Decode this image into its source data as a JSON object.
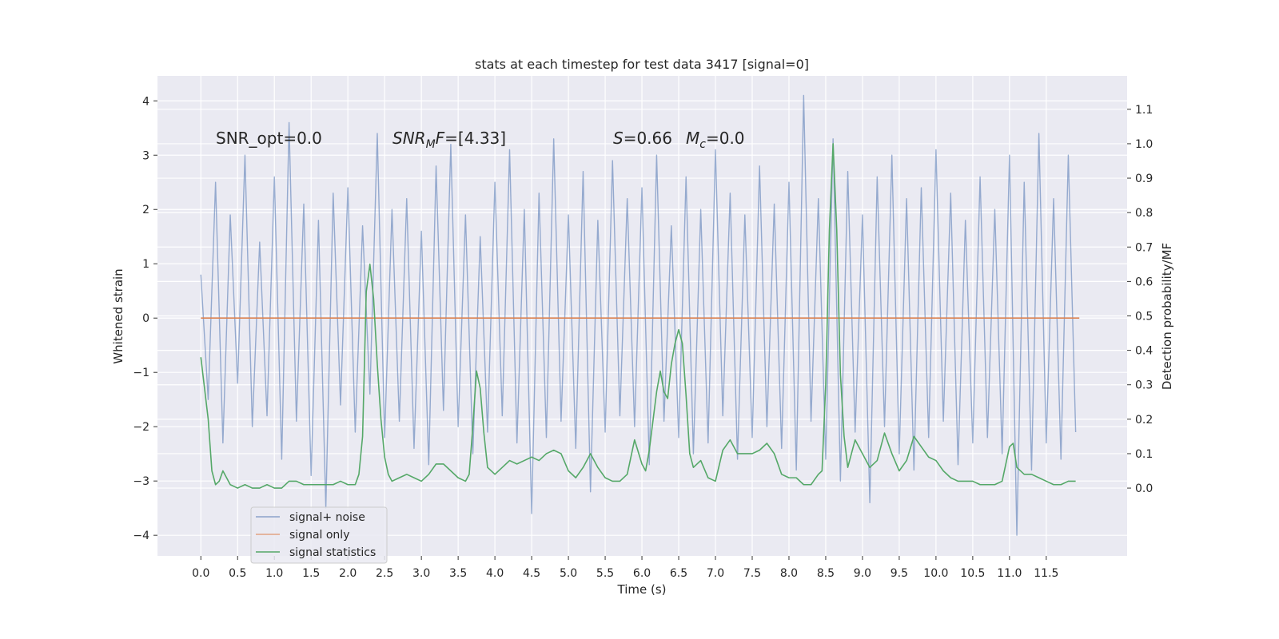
{
  "chart_data": {
    "type": "line",
    "title": "stats at each timestep for test data 3417 [signal=0]",
    "xlabel": "Time (s)",
    "ylabel": "Whitened strain",
    "y2label": "Detection probability/MF",
    "annotations": [
      [
        "SNR_opt=0.0"
      ],
      [
        "SNR",
        "M",
        "F",
        "=[4.33]"
      ],
      [
        "S",
        "=0.66"
      ],
      [
        "M",
        "c",
        "=0.0"
      ]
    ],
    "xlim": [
      -0.59,
      12.6
    ],
    "ylim": [
      -4.38,
      4.46
    ],
    "y2lim": [
      -0.197,
      1.197
    ],
    "xticks": [
      {
        "value": 0,
        "label": "0.0"
      },
      0.5,
      {
        "value": 1,
        "label": "1.0"
      },
      1.5,
      {
        "value": 2,
        "label": "2.0"
      },
      2.5,
      {
        "value": 3,
        "label": "3.0"
      },
      3.5,
      {
        "value": 4,
        "label": "4.0"
      },
      4.5,
      {
        "value": 5,
        "label": "5.0"
      },
      5.5,
      {
        "value": 6,
        "label": "6.0"
      },
      6.5,
      {
        "value": 7,
        "label": "7.0"
      },
      7.5,
      {
        "value": 8,
        "label": "8.0"
      },
      8.5,
      {
        "value": 9,
        "label": "9.0"
      },
      9.5,
      {
        "value": 10,
        "label": "10.0"
      },
      10.5,
      {
        "value": 11,
        "label": "11.0"
      },
      11.5
    ],
    "yticks": [
      {
        "value": -4,
        "label": "−4"
      },
      {
        "value": -3,
        "label": "−3"
      },
      {
        "value": -2,
        "label": "−2"
      },
      {
        "value": -1,
        "label": "−1"
      },
      0,
      1,
      2,
      3,
      4
    ],
    "y2ticks": [
      {
        "value": 0,
        "label": "0.0"
      },
      0.1,
      0.2,
      0.3,
      0.4,
      0.5,
      0.6,
      0.7,
      0.8,
      0.9,
      {
        "value": 1,
        "label": "1.0"
      },
      1.1
    ],
    "grid": true,
    "legend": "lower left",
    "series": [
      {
        "name": "signal+ noise",
        "color": "#4c72b0",
        "x": [
          0,
          0.1,
          0.2,
          0.3,
          0.4,
          0.5,
          0.6,
          0.7,
          0.8,
          0.9,
          1,
          1.1,
          1.2,
          1.3,
          1.4,
          1.5,
          1.6,
          1.7,
          1.8,
          1.9,
          2,
          2.1,
          2.2,
          2.3,
          2.4,
          2.5,
          2.6,
          2.7,
          2.8,
          2.9,
          3,
          3.1,
          3.2,
          3.3,
          3.4,
          3.5,
          3.6,
          3.7,
          3.8,
          3.9,
          4,
          4.1,
          4.2,
          4.3,
          4.4,
          4.5,
          4.6,
          4.7,
          4.8,
          4.9,
          5,
          5.1,
          5.2,
          5.3,
          5.4,
          5.5,
          5.6,
          5.7,
          5.8,
          5.9,
          6,
          6.1,
          6.2,
          6.3,
          6.4,
          6.5,
          6.6,
          6.7,
          6.8,
          6.9,
          7,
          7.1,
          7.2,
          7.3,
          7.4,
          7.5,
          7.6,
          7.7,
          7.8,
          7.9,
          8,
          8.1,
          8.2,
          8.3,
          8.4,
          8.5,
          8.6,
          8.7,
          8.8,
          8.9,
          9,
          9.1,
          9.2,
          9.3,
          9.4,
          9.5,
          9.6,
          9.7,
          9.8,
          9.9,
          10,
          10.1,
          10.2,
          10.3,
          10.4,
          10.5,
          10.6,
          10.7,
          10.8,
          10.9,
          11,
          11.1,
          11.2,
          11.3,
          11.4,
          11.5,
          11.6,
          11.7,
          11.8,
          11.9
        ],
        "values": [
          0.8,
          -1.5,
          2.5,
          -2.3,
          1.9,
          -1.2,
          3.0,
          -2.0,
          1.4,
          -1.8,
          2.6,
          -2.6,
          3.6,
          -1.9,
          2.1,
          -2.9,
          1.8,
          -3.5,
          2.3,
          -1.6,
          2.4,
          -2.1,
          1.7,
          -1.4,
          3.4,
          -2.2,
          2.0,
          -1.9,
          2.2,
          -2.4,
          1.6,
          -2.7,
          2.8,
          -1.7,
          3.2,
          -2.0,
          1.9,
          -2.5,
          1.5,
          -2.1,
          2.5,
          -1.8,
          3.1,
          -2.3,
          2.0,
          -3.6,
          2.3,
          -2.2,
          3.3,
          -1.9,
          1.9,
          -2.4,
          2.7,
          -3.2,
          1.8,
          -2.1,
          2.9,
          -1.8,
          2.2,
          -2.0,
          2.4,
          -2.7,
          3.0,
          -1.9,
          1.7,
          -2.2,
          2.6,
          -2.5,
          2.0,
          -2.3,
          3.1,
          -1.8,
          2.3,
          -2.6,
          1.9,
          -2.2,
          2.8,
          -2.0,
          2.1,
          -2.4,
          2.5,
          -2.8,
          4.1,
          -1.9,
          2.2,
          -2.6,
          3.3,
          -3.0,
          2.7,
          -2.1,
          1.9,
          -3.4,
          2.6,
          -2.0,
          3.0,
          -2.5,
          2.2,
          -2.8,
          2.4,
          -2.2,
          3.1,
          -1.9,
          2.3,
          -2.7,
          1.8,
          -2.3,
          2.6,
          -2.2,
          2.0,
          -2.5,
          3.0,
          -4.0,
          2.5,
          -2.8,
          3.4,
          -2.3,
          2.2,
          -2.6,
          3.0,
          -2.1
        ]
      },
      {
        "name": "signal only",
        "color": "#dd8452",
        "x": [
          0,
          11.95
        ],
        "values": [
          0,
          0
        ]
      },
      {
        "name": "signal statistics",
        "color": "#55a868",
        "axis": "y2",
        "x": [
          0,
          0.1,
          0.15,
          0.2,
          0.25,
          0.3,
          0.4,
          0.5,
          0.6,
          0.7,
          0.8,
          0.9,
          1,
          1.1,
          1.2,
          1.3,
          1.4,
          1.5,
          1.7,
          1.8,
          1.9,
          2,
          2.1,
          2.15,
          2.2,
          2.25,
          2.3,
          2.35,
          2.4,
          2.45,
          2.5,
          2.55,
          2.6,
          2.7,
          2.8,
          2.9,
          3,
          3.1,
          3.2,
          3.3,
          3.4,
          3.5,
          3.6,
          3.65,
          3.7,
          3.75,
          3.8,
          3.85,
          3.9,
          4,
          4.1,
          4.2,
          4.3,
          4.4,
          4.5,
          4.6,
          4.7,
          4.8,
          4.9,
          5,
          5.1,
          5.2,
          5.3,
          5.4,
          5.5,
          5.6,
          5.7,
          5.8,
          5.9,
          6,
          6.05,
          6.1,
          6.2,
          6.25,
          6.3,
          6.35,
          6.4,
          6.45,
          6.5,
          6.55,
          6.6,
          6.65,
          6.7,
          6.8,
          6.9,
          7,
          7.1,
          7.2,
          7.3,
          7.4,
          7.5,
          7.6,
          7.7,
          7.8,
          7.9,
          8,
          8.1,
          8.2,
          8.3,
          8.4,
          8.45,
          8.5,
          8.55,
          8.6,
          8.65,
          8.7,
          8.75,
          8.8,
          8.9,
          9,
          9.1,
          9.2,
          9.3,
          9.4,
          9.5,
          9.6,
          9.7,
          9.8,
          9.9,
          10,
          10.1,
          10.2,
          10.3,
          10.4,
          10.5,
          10.6,
          10.7,
          10.8,
          10.9,
          11,
          11.05,
          11.1,
          11.2,
          11.3,
          11.4,
          11.5,
          11.6,
          11.7,
          11.8,
          11.9
        ],
        "values": [
          0.38,
          0.2,
          0.05,
          0.01,
          0.02,
          0.05,
          0.01,
          0,
          0.01,
          0,
          0,
          0.01,
          0,
          0,
          0.02,
          0.02,
          0.01,
          0.01,
          0.01,
          0.01,
          0.02,
          0.01,
          0.01,
          0.04,
          0.15,
          0.57,
          0.65,
          0.55,
          0.36,
          0.2,
          0.09,
          0.04,
          0.02,
          0.03,
          0.04,
          0.03,
          0.02,
          0.04,
          0.07,
          0.07,
          0.05,
          0.03,
          0.02,
          0.04,
          0.18,
          0.34,
          0.29,
          0.16,
          0.06,
          0.04,
          0.06,
          0.08,
          0.07,
          0.08,
          0.09,
          0.08,
          0.1,
          0.11,
          0.1,
          0.05,
          0.03,
          0.06,
          0.1,
          0.06,
          0.03,
          0.02,
          0.02,
          0.04,
          0.14,
          0.07,
          0.05,
          0.11,
          0.28,
          0.34,
          0.28,
          0.26,
          0.36,
          0.42,
          0.46,
          0.42,
          0.27,
          0.1,
          0.06,
          0.08,
          0.03,
          0.02,
          0.11,
          0.14,
          0.1,
          0.1,
          0.1,
          0.11,
          0.13,
          0.1,
          0.04,
          0.03,
          0.03,
          0.01,
          0.01,
          0.04,
          0.05,
          0.3,
          0.75,
          1.0,
          0.75,
          0.33,
          0.15,
          0.06,
          0.14,
          0.1,
          0.06,
          0.08,
          0.16,
          0.1,
          0.05,
          0.08,
          0.15,
          0.12,
          0.09,
          0.08,
          0.05,
          0.03,
          0.02,
          0.02,
          0.02,
          0.01,
          0.01,
          0.01,
          0.02,
          0.12,
          0.13,
          0.06,
          0.04,
          0.04,
          0.03,
          0.02,
          0.01,
          0.01,
          0.02,
          0.02
        ]
      }
    ]
  }
}
